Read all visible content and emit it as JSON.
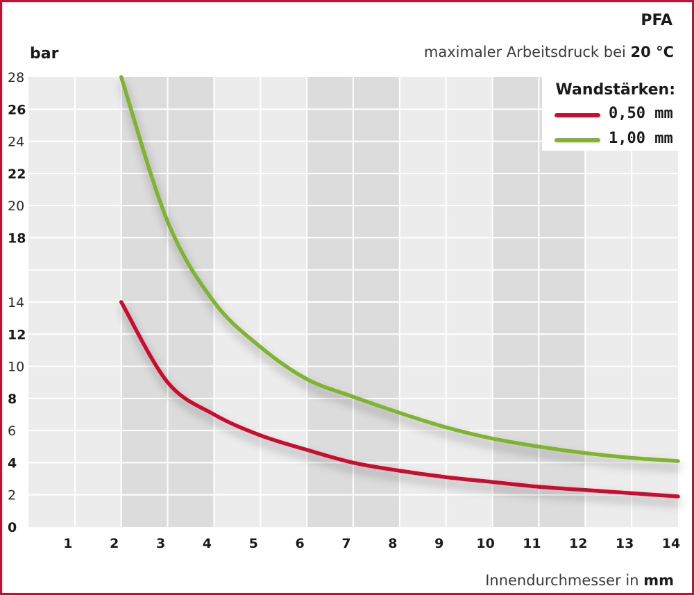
{
  "header": {
    "title": "PFA",
    "subtitle_prefix": "maximaler Arbeitsdruck bei",
    "subtitle_value": "20 °C"
  },
  "axes": {
    "ylabel": "bar",
    "xlabel_prefix": "Innendurchmesser in",
    "xlabel_unit": "mm"
  },
  "legend": {
    "title": "Wandstärken:",
    "items": [
      {
        "label": "0,50 mm",
        "color": "#c8102e"
      },
      {
        "label": "1,00 mm",
        "color": "#7fb431"
      }
    ]
  },
  "colors": {
    "frame": "#c8102e",
    "band_light": "#ececec",
    "band_dark": "#dcdcdc",
    "gridline": "#ffffff"
  },
  "chart_data": {
    "type": "line",
    "title": "PFA",
    "subtitle": "maximaler Arbeitsdruck bei 20 °C",
    "xlabel": "Innendurchmesser in mm",
    "ylabel": "bar",
    "xlim": [
      0,
      14
    ],
    "ylim": [
      0,
      28
    ],
    "x_ticks": [
      1,
      2,
      3,
      4,
      5,
      6,
      7,
      8,
      9,
      10,
      11,
      12,
      13,
      14
    ],
    "y_ticks": [
      0,
      2,
      4,
      6,
      8,
      10,
      12,
      14,
      18,
      20,
      22,
      24,
      26,
      28
    ],
    "y_ticks_bold": [
      0,
      4,
      8,
      12,
      18,
      22,
      26
    ],
    "grid": true,
    "legend_position": "top-right",
    "series": [
      {
        "name": "0,50 mm",
        "color": "#c8102e",
        "x": [
          2,
          3,
          4,
          5,
          6,
          7,
          8,
          9,
          10,
          11,
          12,
          13,
          14
        ],
        "y": [
          14,
          9,
          7,
          5.7,
          4.8,
          4,
          3.5,
          3.1,
          2.8,
          2.5,
          2.3,
          2.1,
          1.9
        ]
      },
      {
        "name": "1,00 mm",
        "color": "#7fb431",
        "x": [
          2,
          3,
          4,
          5,
          6,
          7,
          8,
          9,
          10,
          11,
          12,
          13,
          14
        ],
        "y": [
          28,
          19,
          14,
          11.2,
          9.2,
          8.1,
          7.1,
          6.2,
          5.5,
          5,
          4.6,
          4.3,
          4.1
        ]
      }
    ]
  }
}
